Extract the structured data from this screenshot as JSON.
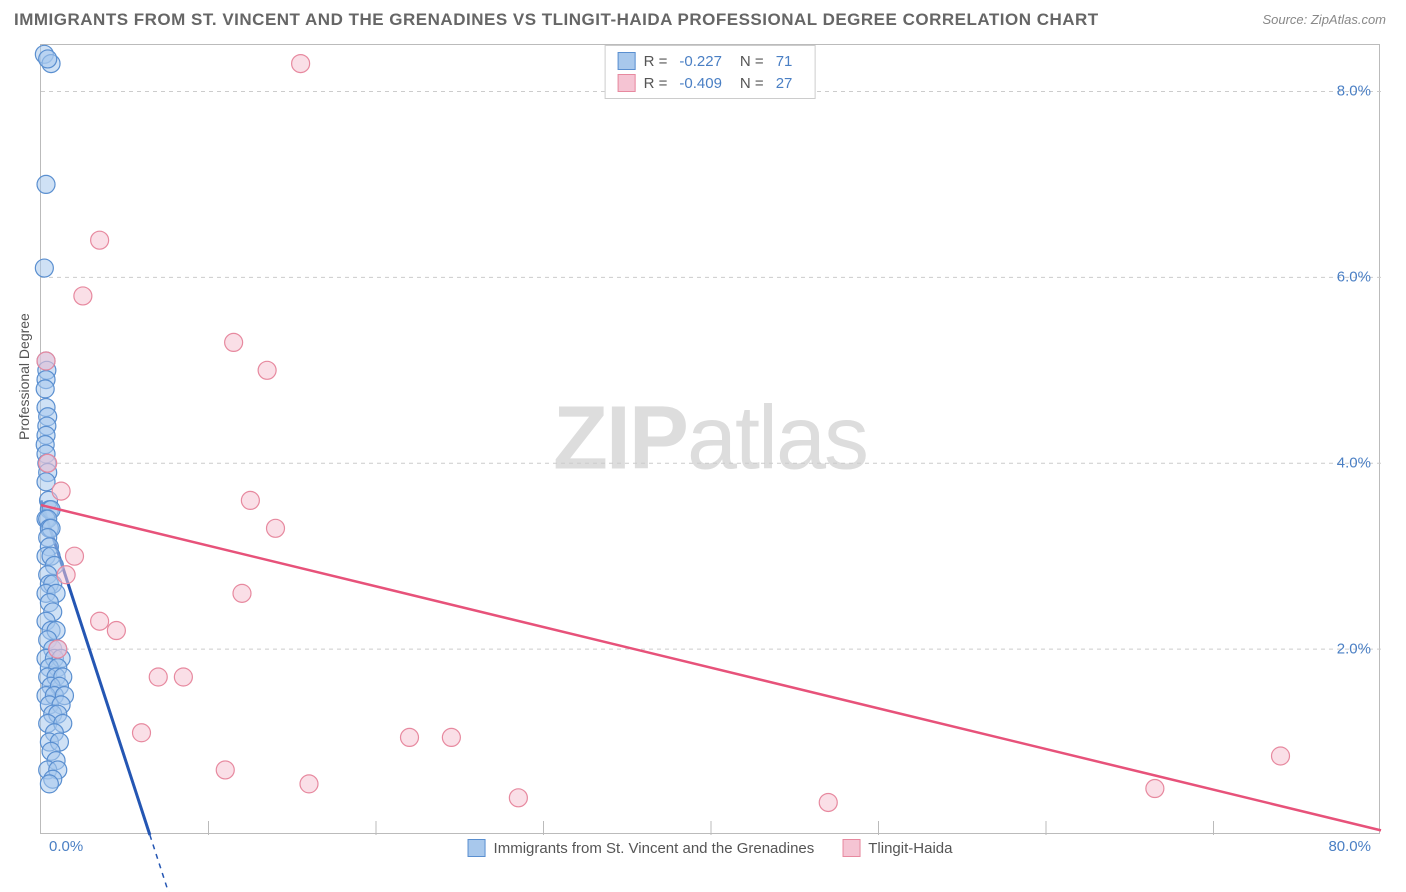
{
  "title": "IMMIGRANTS FROM ST. VINCENT AND THE GRENADINES VS TLINGIT-HAIDA PROFESSIONAL DEGREE CORRELATION CHART",
  "source": "Source: ZipAtlas.com",
  "watermark_zip": "ZIP",
  "watermark_atlas": "atlas",
  "y_label": "Professional Degree",
  "chart": {
    "type": "scatter",
    "xlim": [
      0,
      80
    ],
    "ylim": [
      0,
      8.5
    ],
    "x_ticks": [
      0,
      10,
      20,
      30,
      40,
      50,
      60,
      70,
      80
    ],
    "x_tick_labels_shown": {
      "0": "0.0%",
      "80": "80.0%"
    },
    "y_ticks": [
      2,
      4,
      6,
      8
    ],
    "y_tick_labels": [
      "2.0%",
      "4.0%",
      "6.0%",
      "8.0%"
    ],
    "background_color": "#ffffff",
    "grid_color": "#cccccc",
    "axis_color": "#bbbbbb",
    "tick_label_color": "#4a7fc4",
    "axis_label_color": "#555555",
    "marker_radius": 9,
    "marker_opacity": 0.55,
    "series": [
      {
        "name": "Immigrants from St. Vincent and the Grenadines",
        "color_fill": "#a8c8ec",
        "color_stroke": "#5a8fd0",
        "R": "-0.227",
        "N": "71",
        "trend": {
          "x1": 0,
          "y1": 3.6,
          "x2": 6.5,
          "y2": 0,
          "color": "#2456b3",
          "width": 3,
          "dash_extend": true
        },
        "points": [
          [
            0.2,
            8.4
          ],
          [
            0.6,
            8.3
          ],
          [
            0.4,
            8.35
          ],
          [
            0.3,
            7.0
          ],
          [
            0.2,
            6.1
          ],
          [
            0.3,
            5.1
          ],
          [
            0.35,
            5.0
          ],
          [
            0.3,
            4.9
          ],
          [
            0.25,
            4.8
          ],
          [
            0.3,
            4.6
          ],
          [
            0.4,
            4.5
          ],
          [
            0.35,
            4.4
          ],
          [
            0.3,
            4.3
          ],
          [
            0.25,
            4.2
          ],
          [
            0.3,
            4.1
          ],
          [
            0.35,
            4.0
          ],
          [
            0.4,
            3.9
          ],
          [
            0.3,
            3.8
          ],
          [
            0.45,
            3.6
          ],
          [
            0.5,
            3.5
          ],
          [
            0.6,
            3.5
          ],
          [
            0.3,
            3.4
          ],
          [
            0.4,
            3.4
          ],
          [
            0.5,
            3.3
          ],
          [
            0.6,
            3.3
          ],
          [
            0.4,
            3.2
          ],
          [
            0.5,
            3.1
          ],
          [
            0.3,
            3.0
          ],
          [
            0.6,
            3.0
          ],
          [
            0.8,
            2.9
          ],
          [
            0.4,
            2.8
          ],
          [
            0.5,
            2.7
          ],
          [
            0.7,
            2.7
          ],
          [
            0.3,
            2.6
          ],
          [
            0.9,
            2.6
          ],
          [
            0.5,
            2.5
          ],
          [
            0.7,
            2.4
          ],
          [
            0.3,
            2.3
          ],
          [
            0.6,
            2.2
          ],
          [
            0.9,
            2.2
          ],
          [
            0.4,
            2.1
          ],
          [
            0.7,
            2.0
          ],
          [
            1.0,
            2.0
          ],
          [
            0.3,
            1.9
          ],
          [
            0.8,
            1.9
          ],
          [
            1.2,
            1.9
          ],
          [
            0.5,
            1.8
          ],
          [
            1.0,
            1.8
          ],
          [
            0.4,
            1.7
          ],
          [
            0.9,
            1.7
          ],
          [
            1.3,
            1.7
          ],
          [
            0.6,
            1.6
          ],
          [
            1.1,
            1.6
          ],
          [
            0.3,
            1.5
          ],
          [
            0.8,
            1.5
          ],
          [
            1.4,
            1.5
          ],
          [
            0.5,
            1.4
          ],
          [
            1.2,
            1.4
          ],
          [
            0.7,
            1.3
          ],
          [
            1.0,
            1.3
          ],
          [
            0.4,
            1.2
          ],
          [
            1.3,
            1.2
          ],
          [
            0.8,
            1.1
          ],
          [
            0.5,
            1.0
          ],
          [
            1.1,
            1.0
          ],
          [
            0.6,
            0.9
          ],
          [
            0.9,
            0.8
          ],
          [
            0.4,
            0.7
          ],
          [
            1.0,
            0.7
          ],
          [
            0.7,
            0.6
          ],
          [
            0.5,
            0.55
          ]
        ]
      },
      {
        "name": "Tlingit-Haida",
        "color_fill": "#f5c4d3",
        "color_stroke": "#e7899f",
        "R": "-0.409",
        "N": "27",
        "trend": {
          "x1": 0,
          "y1": 3.55,
          "x2": 80,
          "y2": 0.05,
          "color": "#e7527a",
          "width": 2.5,
          "dash_extend": false
        },
        "points": [
          [
            15.5,
            8.3
          ],
          [
            3.5,
            6.4
          ],
          [
            2.5,
            5.8
          ],
          [
            0.3,
            5.1
          ],
          [
            11.5,
            5.3
          ],
          [
            13.5,
            5.0
          ],
          [
            0.4,
            4.0
          ],
          [
            1.2,
            3.7
          ],
          [
            12.5,
            3.6
          ],
          [
            14.0,
            3.3
          ],
          [
            2.0,
            3.0
          ],
          [
            1.5,
            2.8
          ],
          [
            12.0,
            2.6
          ],
          [
            3.5,
            2.3
          ],
          [
            4.5,
            2.2
          ],
          [
            1.0,
            2.0
          ],
          [
            7.0,
            1.7
          ],
          [
            8.5,
            1.7
          ],
          [
            6.0,
            1.1
          ],
          [
            11.0,
            0.7
          ],
          [
            16.0,
            0.55
          ],
          [
            22.0,
            1.05
          ],
          [
            24.5,
            1.05
          ],
          [
            28.5,
            0.4
          ],
          [
            47.0,
            0.35
          ],
          [
            66.5,
            0.5
          ],
          [
            74.0,
            0.85
          ]
        ]
      }
    ]
  },
  "legend_bottom": [
    {
      "label": "Immigrants from St. Vincent and the Grenadines",
      "fill": "#a8c8ec",
      "stroke": "#5a8fd0"
    },
    {
      "label": "Tlingit-Haida",
      "fill": "#f5c4d3",
      "stroke": "#e7899f"
    }
  ]
}
